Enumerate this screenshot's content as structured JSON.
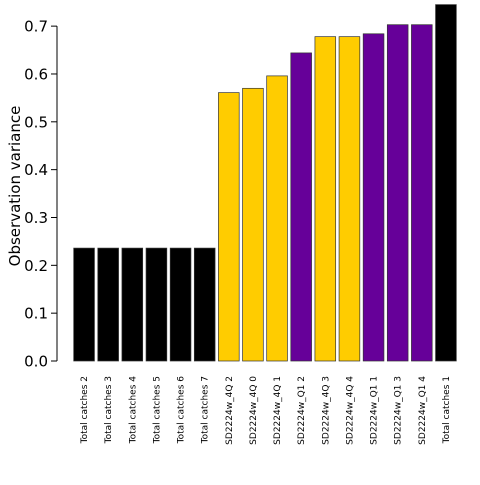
{
  "chart_data": {
    "type": "bar",
    "title": "",
    "xlabel": "",
    "ylabel": "Observation variance",
    "ylim": [
      0,
      0.74
    ],
    "yticks": [
      0.0,
      0.1,
      0.2,
      0.3,
      0.4,
      0.5,
      0.6,
      0.7
    ],
    "ytick_labels": [
      "0.0",
      "0.1",
      "0.2",
      "0.3",
      "0.4",
      "0.5",
      "0.6",
      "0.7"
    ],
    "grid": false,
    "categories": [
      "Total catches 2",
      "Total catches 3",
      "Total catches 4",
      "Total catches 5",
      "Total catches 6",
      "Total catches 7",
      "SD2224w_4Q 2",
      "SD2224w_4Q 0",
      "SD2224w_4Q 1",
      "SD2224w_Q1 2",
      "SD2224w_4Q 3",
      "SD2224w_4Q 4",
      "SD2224w_Q1 1",
      "SD2224w_Q1 3",
      "SD2224w_Q1 4",
      "Total catches 1"
    ],
    "values": [
      0.236,
      0.236,
      0.236,
      0.236,
      0.236,
      0.236,
      0.561,
      0.57,
      0.596,
      0.644,
      0.678,
      0.678,
      0.684,
      0.703,
      0.703,
      0.745
    ],
    "colors": [
      "#000000",
      "#000000",
      "#000000",
      "#000000",
      "#000000",
      "#000000",
      "#ffcc00",
      "#ffcc00",
      "#ffcc00",
      "#660099",
      "#ffcc00",
      "#ffcc00",
      "#660099",
      "#660099",
      "#660099",
      "#000000"
    ]
  }
}
